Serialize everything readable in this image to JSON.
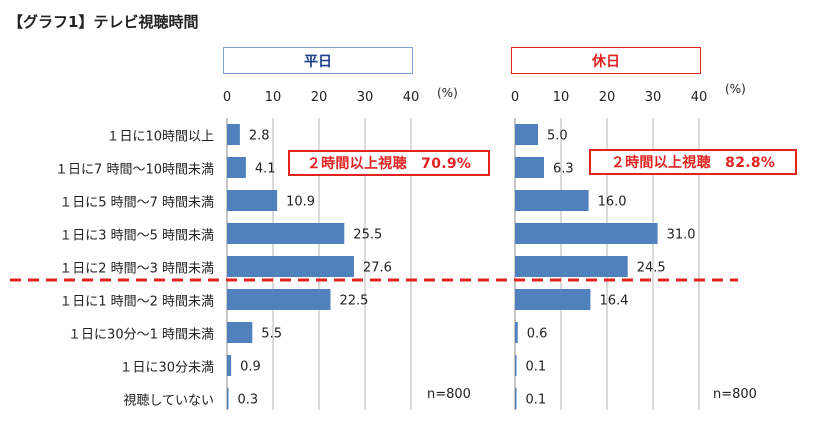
{
  "title": "【グラフ1】テレビ視聴時間",
  "chart_data": {
    "type": "bar",
    "orientation": "horizontal",
    "categories": [
      "１日に10時間以上",
      "１日に7 時間～10時間未満",
      "１日に5 時間～7 時間未満",
      "１日に3 時間～5 時間未満",
      "１日に2 時間～3 時間未満",
      "１日に1 時間～2 時間未満",
      "１日に30分～1 時間未満",
      "１日に30分未満",
      "視聴していない"
    ],
    "xlim": [
      0,
      40
    ],
    "xticks": [
      "0",
      "10",
      "20",
      "30",
      "40"
    ],
    "unit": "(%)",
    "grid": true,
    "bar_color": "#4f81bd",
    "divider_color": "#e32222",
    "panels": [
      {
        "title": "平日",
        "values": [
          2.8,
          4.1,
          10.9,
          25.5,
          27.6,
          22.5,
          5.5,
          0.9,
          0.3
        ],
        "value_labels": [
          "2.8",
          "4.1",
          "10.9",
          "25.5",
          "27.6",
          "22.5",
          "5.5",
          "0.9",
          "0.3"
        ],
        "callout": "２時間以上視聴　70.9%",
        "n": "n=800"
      },
      {
        "title": "休日",
        "values": [
          5.0,
          6.3,
          16.0,
          31.0,
          24.5,
          16.4,
          0.6,
          0.1,
          0.1
        ],
        "value_labels": [
          "5.0",
          "6.3",
          "16.0",
          "31.0",
          "24.5",
          "16.4",
          "0.6",
          "0.1",
          "0.1"
        ],
        "callout": "２時間以上視聴　82.8%",
        "n": "n=800"
      }
    ]
  }
}
